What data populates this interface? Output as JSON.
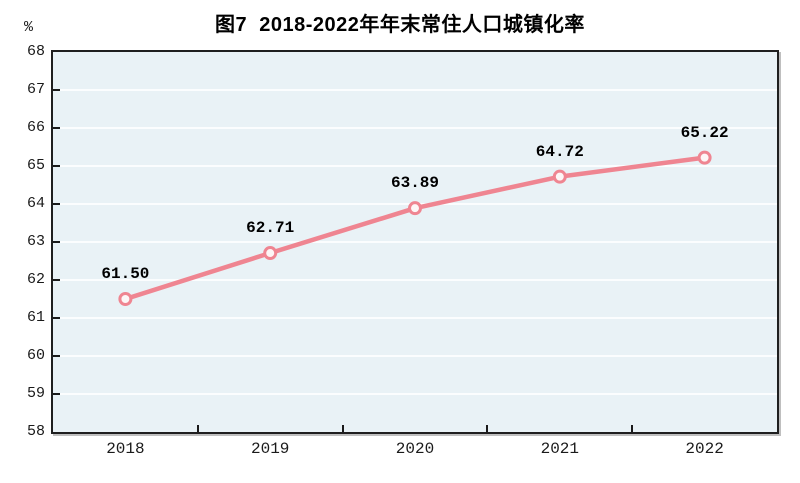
{
  "figure": {
    "title": "图7  2018-2022年年末常住人口城镇化率",
    "y_unit_label": "%"
  },
  "colors": {
    "plot_bg": "#e9f2f6",
    "grid": "#fbfdfe",
    "axis": "#1a1a1a",
    "line": "#ef8591",
    "marker_fill": "#fdf6f6",
    "label_text": "#000000"
  },
  "chart_data": {
    "type": "line",
    "title": "图7  2018-2022年年末常住人口城镇化率",
    "categories": [
      "2018",
      "2019",
      "2020",
      "2021",
      "2022"
    ],
    "values": [
      61.5,
      62.71,
      63.89,
      64.72,
      65.22
    ],
    "point_labels": [
      "61.50",
      "62.71",
      "63.89",
      "64.72",
      "65.22"
    ],
    "xlabel": "",
    "ylabel": "%",
    "ylim": [
      58,
      68
    ],
    "yticks": [
      58,
      59,
      60,
      61,
      62,
      63,
      64,
      65,
      66,
      67,
      68
    ],
    "grid": true,
    "legend": "none",
    "marker": "open-circle"
  }
}
